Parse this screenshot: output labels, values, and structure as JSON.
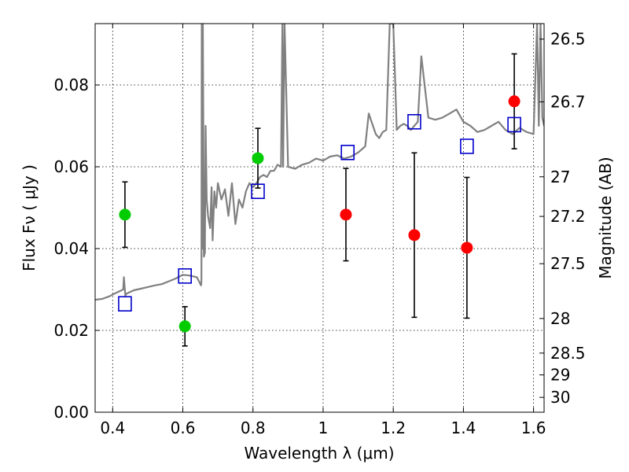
{
  "chart_data": {
    "type": "scatter",
    "xlabel": "Wavelength  λ (μm)",
    "ylabel": "Flux  Fν  ( μJy )",
    "ylabel_right": "Magnitude (AB)",
    "xlim": [
      0.35,
      1.63
    ],
    "ylim": [
      0.0,
      0.095
    ],
    "grid": true,
    "x_ticks": [
      {
        "value": 0.4,
        "label": "0.4"
      },
      {
        "value": 0.6,
        "label": "0.6"
      },
      {
        "value": 0.8,
        "label": "0.8"
      },
      {
        "value": 1.0,
        "label": "1"
      },
      {
        "value": 1.2,
        "label": "1.2"
      },
      {
        "value": 1.4,
        "label": "1.4"
      },
      {
        "value": 1.6,
        "label": "1.6"
      }
    ],
    "y_ticks": [
      {
        "value": 0.0,
        "label": "0.00"
      },
      {
        "value": 0.02,
        "label": "0.02"
      },
      {
        "value": 0.04,
        "label": "0.04"
      },
      {
        "value": 0.06,
        "label": "0.06"
      },
      {
        "value": 0.08,
        "label": "0.08"
      }
    ],
    "right_ticks": [
      {
        "value": 26.5,
        "label": "26.5"
      },
      {
        "value": 26.7,
        "label": "26.7"
      },
      {
        "value": 27.0,
        "label": "27"
      },
      {
        "value": 27.2,
        "label": "27.2"
      },
      {
        "value": 27.5,
        "label": "27.5"
      },
      {
        "value": 28.0,
        "label": "28"
      },
      {
        "value": 28.5,
        "label": "28.5"
      },
      {
        "value": 29.0,
        "label": "29"
      },
      {
        "value": 30.0,
        "label": "30"
      }
    ],
    "series": [
      {
        "kind": "points-green",
        "color": "#00cc00",
        "x": [
          0.435,
          0.606,
          0.814
        ],
        "y": [
          0.0483,
          0.021,
          0.0621
        ],
        "y_err": [
          0.008,
          0.0048,
          0.0073
        ]
      },
      {
        "kind": "points-red",
        "color": "#ff0000",
        "x": [
          1.065,
          1.26,
          1.41,
          1.545
        ],
        "y": [
          0.0483,
          0.0433,
          0.0402,
          0.076
        ],
        "y_err": [
          0.0113,
          0.0201,
          0.0172,
          0.0116
        ]
      },
      {
        "kind": "model-squares",
        "color": "#0000cc",
        "x": [
          0.435,
          0.606,
          0.814,
          1.07,
          1.26,
          1.41,
          1.545
        ],
        "y": [
          0.0265,
          0.0333,
          0.054,
          0.0635,
          0.071,
          0.065,
          0.0703
        ]
      },
      {
        "kind": "model-spectrum",
        "color": "#808080",
        "x": [
          0.35,
          0.37,
          0.39,
          0.41,
          0.43,
          0.432,
          0.436,
          0.44,
          0.46,
          0.48,
          0.5,
          0.52,
          0.54,
          0.56,
          0.58,
          0.6,
          0.62,
          0.64,
          0.652,
          0.653,
          0.654,
          0.656,
          0.657,
          0.66,
          0.663,
          0.665,
          0.668,
          0.672,
          0.678,
          0.682,
          0.685,
          0.69,
          0.695,
          0.7,
          0.71,
          0.72,
          0.73,
          0.74,
          0.75,
          0.76,
          0.77,
          0.78,
          0.79,
          0.8,
          0.81,
          0.82,
          0.83,
          0.84,
          0.85,
          0.86,
          0.87,
          0.88,
          0.884,
          0.886,
          0.89,
          0.9,
          0.92,
          0.94,
          0.96,
          0.98,
          1.0,
          1.02,
          1.04,
          1.06,
          1.08,
          1.1,
          1.12,
          1.13,
          1.15,
          1.16,
          1.17,
          1.18,
          1.19,
          1.2,
          1.21,
          1.22,
          1.23,
          1.24,
          1.25,
          1.26,
          1.27,
          1.28,
          1.3,
          1.32,
          1.34,
          1.36,
          1.38,
          1.4,
          1.42,
          1.44,
          1.46,
          1.48,
          1.5,
          1.52,
          1.54,
          1.56,
          1.58,
          1.6,
          1.61,
          1.615,
          1.62,
          1.625,
          1.63
        ],
        "y": [
          0.0275,
          0.0277,
          0.0283,
          0.0292,
          0.03,
          0.033,
          0.0285,
          0.029,
          0.0298,
          0.0302,
          0.0306,
          0.031,
          0.0313,
          0.032,
          0.0327,
          0.0336,
          0.0334,
          0.033,
          0.031,
          0.032,
          0.095,
          0.04,
          0.095,
          0.038,
          0.039,
          0.07,
          0.052,
          0.048,
          0.045,
          0.055,
          0.042,
          0.054,
          0.05,
          0.056,
          0.052,
          0.0545,
          0.048,
          0.056,
          0.046,
          0.052,
          0.05,
          0.054,
          0.056,
          0.055,
          0.056,
          0.0575,
          0.058,
          0.0575,
          0.059,
          0.059,
          0.0605,
          0.06,
          0.095,
          0.06,
          0.095,
          0.06,
          0.0595,
          0.0605,
          0.061,
          0.062,
          0.0615,
          0.0625,
          0.0628,
          0.062,
          0.0625,
          0.0635,
          0.065,
          0.073,
          0.068,
          0.067,
          0.0685,
          0.069,
          0.095,
          0.095,
          0.069,
          0.07,
          0.0705,
          0.07,
          0.069,
          0.07,
          0.071,
          0.087,
          0.072,
          0.0715,
          0.072,
          0.073,
          0.074,
          0.071,
          0.07,
          0.0685,
          0.069,
          0.07,
          0.071,
          0.069,
          0.068,
          0.0695,
          0.0685,
          0.068,
          0.095,
          0.07,
          0.095,
          0.072,
          0.07
        ]
      }
    ]
  }
}
